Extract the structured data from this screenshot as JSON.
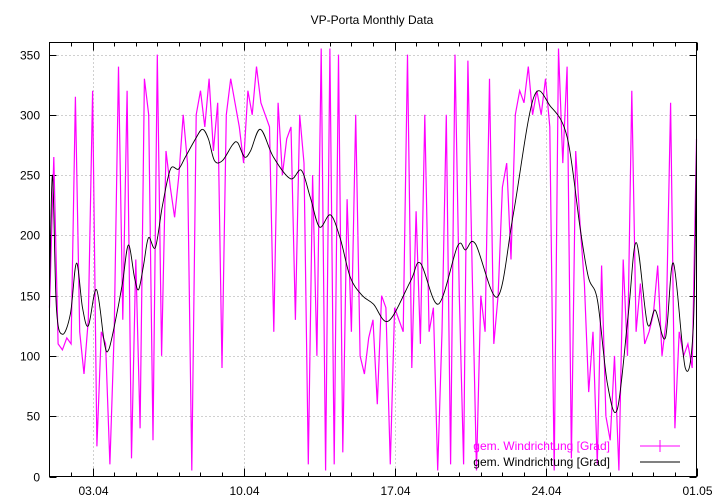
{
  "chart_data": {
    "type": "line",
    "title": "VP-Porta Monthly Data",
    "xlabel": "",
    "ylabel": "",
    "xlim": [
      0,
      30
    ],
    "ylim": [
      0,
      360
    ],
    "x_unit": "days since 01.04",
    "grid": true,
    "legend_position": "bottom-right",
    "x_ticks": [
      {
        "value": 2,
        "label": "03.04"
      },
      {
        "value": 9,
        "label": "10.04"
      },
      {
        "value": 16,
        "label": "17.04"
      },
      {
        "value": 23,
        "label": "24.04"
      },
      {
        "value": 30,
        "label": "01.05"
      }
    ],
    "y_ticks": [
      {
        "value": 0,
        "label": "0"
      },
      {
        "value": 50,
        "label": "50"
      },
      {
        "value": 100,
        "label": "100"
      },
      {
        "value": 150,
        "label": "150"
      },
      {
        "value": 200,
        "label": "200"
      },
      {
        "value": 250,
        "label": "250"
      },
      {
        "value": 300,
        "label": "300"
      },
      {
        "value": 350,
        "label": "350"
      }
    ],
    "series": [
      {
        "name": "gem. Windrichtung [Grad]",
        "color": "#ff00ff",
        "style": "raw",
        "x_start": 0,
        "x_step": 0.2,
        "values": [
          140,
          265,
          110,
          105,
          115,
          110,
          315,
          120,
          85,
          130,
          320,
          25,
          120,
          110,
          10,
          120,
          340,
          130,
          320,
          15,
          180,
          40,
          330,
          300,
          30,
          350,
          100,
          270,
          240,
          215,
          250,
          300,
          260,
          5,
          300,
          320,
          290,
          330,
          270,
          310,
          90,
          300,
          330,
          310,
          290,
          260,
          320,
          300,
          340,
          310,
          300,
          290,
          120,
          310,
          250,
          280,
          290,
          130,
          300,
          260,
          10,
          250,
          100,
          355,
          5,
          355,
          10,
          350,
          20,
          230,
          120,
          300,
          100,
          85,
          115,
          130,
          60,
          150,
          140,
          10,
          140,
          130,
          120,
          350,
          90,
          220,
          110,
          300,
          120,
          140,
          5,
          120,
          300,
          10,
          350,
          150,
          10,
          345,
          170,
          5,
          150,
          120,
          330,
          110,
          150,
          240,
          260,
          180,
          300,
          320,
          310,
          340,
          300,
          320,
          300,
          330,
          290,
          5,
          355,
          260,
          340,
          15,
          270,
          210,
          160,
          70,
          120,
          10,
          175,
          50,
          30,
          100,
          5,
          180,
          100,
          320,
          120,
          160,
          110,
          120,
          135,
          175,
          100,
          130,
          310,
          40,
          120,
          100,
          110,
          90,
          280
        ]
      },
      {
        "name": "gem. Windrichtung [Grad]",
        "color": "#000000",
        "style": "smoothed",
        "points": [
          [
            0,
            150
          ],
          [
            0.14,
            250
          ],
          [
            0.32,
            140
          ],
          [
            0.6,
            118
          ],
          [
            0.97,
            135
          ],
          [
            1.25,
            177
          ],
          [
            1.53,
            140
          ],
          [
            1.8,
            125
          ],
          [
            2.18,
            155
          ],
          [
            2.55,
            110
          ],
          [
            2.74,
            105
          ],
          [
            3.01,
            125
          ],
          [
            3.38,
            160
          ],
          [
            3.66,
            192
          ],
          [
            3.94,
            165
          ],
          [
            4.13,
            155
          ],
          [
            4.36,
            175
          ],
          [
            4.59,
            198
          ],
          [
            4.91,
            190
          ],
          [
            5.24,
            225
          ],
          [
            5.61,
            255
          ],
          [
            5.98,
            255
          ],
          [
            6.3,
            265
          ],
          [
            6.77,
            280
          ],
          [
            7.09,
            288
          ],
          [
            7.37,
            280
          ],
          [
            7.65,
            262
          ],
          [
            8.02,
            262
          ],
          [
            8.48,
            275
          ],
          [
            8.72,
            277
          ],
          [
            9.04,
            265
          ],
          [
            9.32,
            270
          ],
          [
            9.78,
            288
          ],
          [
            10.38,
            265
          ],
          [
            11.17,
            247
          ],
          [
            11.68,
            254
          ],
          [
            12.1,
            231
          ],
          [
            12.52,
            207
          ],
          [
            13.03,
            217
          ],
          [
            13.49,
            197
          ],
          [
            13.95,
            165
          ],
          [
            14.51,
            150
          ],
          [
            15.02,
            143
          ],
          [
            15.72,
            129
          ],
          [
            16.74,
            162
          ],
          [
            17.2,
            177
          ],
          [
            18.03,
            143
          ],
          [
            18.92,
            191
          ],
          [
            19.29,
            188
          ],
          [
            19.75,
            193
          ],
          [
            20.77,
            149
          ],
          [
            21.51,
            218
          ],
          [
            22.44,
            314
          ],
          [
            23.23,
            307
          ],
          [
            24.01,
            281
          ],
          [
            24.62,
            204
          ],
          [
            24.99,
            165
          ],
          [
            25.41,
            146
          ],
          [
            25.87,
            77
          ],
          [
            26.33,
            56
          ],
          [
            26.84,
            135
          ],
          [
            27.21,
            194
          ],
          [
            27.72,
            127
          ],
          [
            28.09,
            138
          ],
          [
            28.56,
            115
          ],
          [
            28.93,
            177
          ],
          [
            29.48,
            90
          ],
          [
            29.85,
            124
          ],
          [
            30,
            273
          ]
        ]
      }
    ]
  }
}
